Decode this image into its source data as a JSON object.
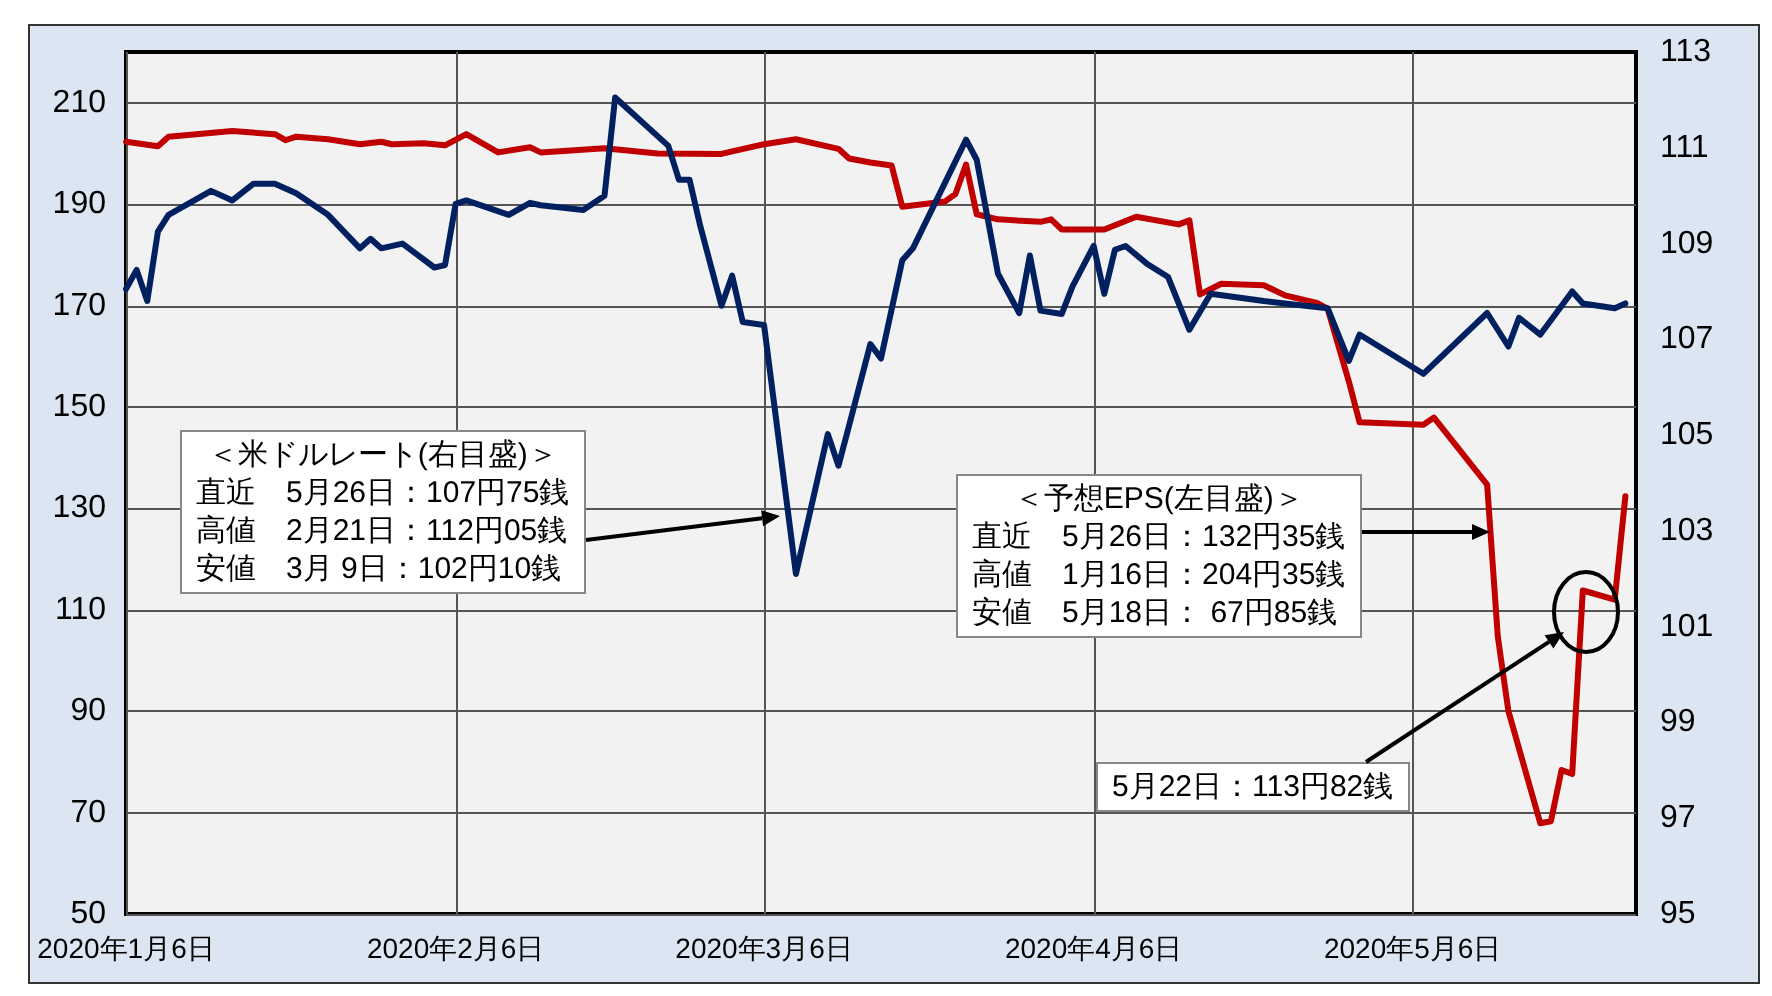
{
  "chart_data": {
    "type": "line",
    "xlim": [
      "2020-01-06",
      "2020-05-27"
    ],
    "xticks": [
      {
        "value": "2020-01-06",
        "label": "2020年1月6日"
      },
      {
        "value": "2020-02-06",
        "label": "2020年2月6日"
      },
      {
        "value": "2020-03-06",
        "label": "2020年3月6日"
      },
      {
        "value": "2020-04-06",
        "label": "2020年4月6日"
      },
      {
        "value": "2020-05-06",
        "label": "2020年5月6日"
      }
    ],
    "ylim": [
      50,
      220
    ],
    "yticks": [
      50,
      70,
      90,
      110,
      130,
      150,
      170,
      190,
      210
    ],
    "y2lim": [
      95,
      113
    ],
    "y2ticks": [
      95,
      97,
      99,
      101,
      103,
      105,
      107,
      109,
      111,
      113
    ],
    "grid": true,
    "marker": "none",
    "series": [
      {
        "color": "#c00000",
        "x": [
          "2020-01-06",
          "2020-01-09",
          "2020-01-10",
          "2020-01-16",
          "2020-01-20",
          "2020-01-21",
          "2020-01-22",
          "2020-01-25",
          "2020-01-28",
          "2020-01-30",
          "2020-01-31",
          "2020-02-03",
          "2020-02-05",
          "2020-02-07",
          "2020-02-10",
          "2020-02-13",
          "2020-02-14",
          "2020-02-20",
          "2020-02-25",
          "2020-03-02",
          "2020-03-03",
          "2020-03-06",
          "2020-03-09",
          "2020-03-13",
          "2020-03-14",
          "2020-03-16",
          "2020-03-18",
          "2020-03-19",
          "2020-03-23",
          "2020-03-24",
          "2020-03-25",
          "2020-03-26",
          "2020-03-28",
          "2020-04-01",
          "2020-04-02",
          "2020-04-03",
          "2020-04-07",
          "2020-04-10",
          "2020-04-14",
          "2020-04-15",
          "2020-04-16",
          "2020-04-18",
          "2020-04-22",
          "2020-04-24",
          "2020-04-27",
          "2020-04-28",
          "2020-04-30",
          "2020-05-01",
          "2020-05-07",
          "2020-05-08",
          "2020-05-13",
          "2020-05-14",
          "2020-05-15",
          "2020-05-18",
          "2020-05-19",
          "2020-05-20",
          "2020-05-21",
          "2020-05-22",
          "2020-05-25",
          "2020-05-26"
        ],
        "values": [
          202.3,
          201.4,
          203.3,
          204.4,
          203.8,
          202.6,
          203.3,
          202.8,
          201.8,
          202.3,
          201.8,
          202.0,
          201.6,
          203.8,
          200.2,
          201.2,
          200.2,
          201.0,
          200.0,
          199.9,
          200.4,
          201.8,
          202.8,
          200.9,
          199.0,
          198.2,
          197.6,
          189.5,
          190.5,
          192.0,
          197.8,
          188.0,
          187.0,
          186.5,
          187.0,
          185.0,
          185.0,
          187.5,
          186.0,
          186.8,
          172.2,
          174.3,
          174.0,
          172.0,
          170.5,
          169.4,
          155.0,
          147.0,
          146.5,
          147.9,
          134.7,
          104.8,
          90.0,
          67.9,
          68.3,
          78.4,
          77.6,
          113.8,
          112.0,
          132.4
        ]
      },
      {
        "color": "#002060",
        "axis": "y2",
        "x": [
          "2020-01-06",
          "2020-01-07",
          "2020-01-08",
          "2020-01-09",
          "2020-01-10",
          "2020-01-14",
          "2020-01-16",
          "2020-01-18",
          "2020-01-20",
          "2020-01-22",
          "2020-01-25",
          "2020-01-28",
          "2020-01-29",
          "2020-01-30",
          "2020-02-01",
          "2020-02-04",
          "2020-02-05",
          "2020-02-06",
          "2020-02-07",
          "2020-02-11",
          "2020-02-13",
          "2020-02-14",
          "2020-02-18",
          "2020-02-20",
          "2020-02-21",
          "2020-02-26",
          "2020-02-27",
          "2020-02-28",
          "2020-02-29",
          "2020-03-02",
          "2020-03-03",
          "2020-03-04",
          "2020-03-06",
          "2020-03-09",
          "2020-03-12",
          "2020-03-13",
          "2020-03-14",
          "2020-03-16",
          "2020-03-17",
          "2020-03-19",
          "2020-03-20",
          "2020-03-25",
          "2020-03-26",
          "2020-03-28",
          "2020-03-30",
          "2020-03-31",
          "2020-04-01",
          "2020-04-03",
          "2020-04-04",
          "2020-04-06",
          "2020-04-07",
          "2020-04-08",
          "2020-04-09",
          "2020-04-11",
          "2020-04-13",
          "2020-04-15",
          "2020-04-17",
          "2020-04-22",
          "2020-04-24",
          "2020-04-28",
          "2020-04-30",
          "2020-05-01",
          "2020-05-07",
          "2020-05-13",
          "2020-05-15",
          "2020-05-16",
          "2020-05-18",
          "2020-05-19",
          "2020-05-21",
          "2020-05-22",
          "2020-05-25",
          "2020-05-26"
        ],
        "values": [
          108.05,
          108.45,
          107.8,
          109.25,
          109.6,
          110.1,
          109.9,
          110.25,
          110.25,
          110.05,
          109.6,
          108.9,
          109.1,
          108.9,
          109.0,
          108.5,
          108.55,
          109.83,
          109.9,
          109.6,
          109.85,
          109.8,
          109.7,
          110.0,
          112.05,
          111.04,
          110.33,
          110.33,
          109.37,
          107.7,
          108.33,
          107.36,
          107.3,
          102.1,
          105.02,
          104.36,
          105.2,
          106.9,
          106.6,
          108.65,
          108.9,
          111.17,
          110.75,
          108.37,
          107.55,
          108.75,
          107.6,
          107.53,
          108.1,
          108.95,
          107.95,
          108.87,
          108.95,
          108.58,
          108.3,
          107.2,
          107.95,
          107.8,
          107.75,
          107.65,
          106.55,
          107.1,
          106.28,
          107.55,
          106.85,
          107.45,
          107.1,
          107.4,
          108.0,
          107.75,
          107.65,
          107.75
        ]
      }
    ],
    "annotations": [
      "＜米ドルレート(右目盛)＞",
      "直近　5月26日：107円75銭",
      "高値　2月21日：112円05銭",
      "安値　3月 9日：102円10銭",
      "＜予想EPS(左目盛)＞",
      "直近　5月26日：132円35銭",
      "高値　1月16日：204円35銭",
      "安値　5月18日： 67円85銭",
      "5月22日：113円82銭"
    ]
  }
}
